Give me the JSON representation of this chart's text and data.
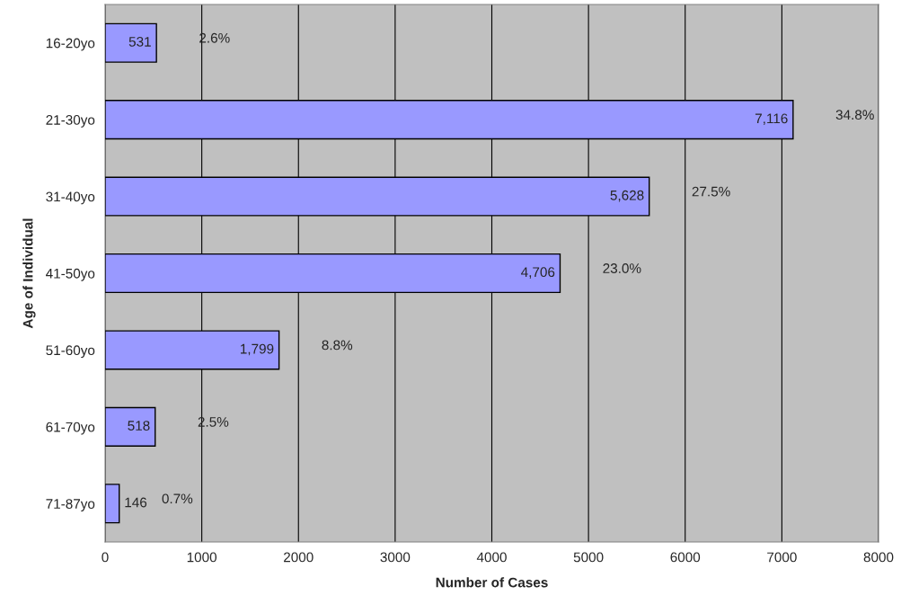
{
  "chart_data": {
    "type": "bar",
    "orientation": "horizontal",
    "xlabel": "Number of Cases",
    "ylabel": "Age of Individual",
    "categories": [
      "16-20yo",
      "21-30yo",
      "31-40yo",
      "41-50yo",
      "51-60yo",
      "61-70yo",
      "71-87yo"
    ],
    "values": [
      531,
      7116,
      5628,
      4706,
      1799,
      518,
      146
    ],
    "value_labels": [
      "531",
      "7,116",
      "5,628",
      "4,706",
      "1,799",
      "518",
      "146"
    ],
    "color": "#9999ff",
    "xlim": [
      0,
      8000
    ],
    "xticks": [
      0,
      1000,
      2000,
      3000,
      4000,
      5000,
      6000,
      7000,
      8000
    ],
    "grid": "x",
    "legend": false,
    "annotations": [
      "2.6%",
      "34.8%",
      "27.5%",
      "23.0%",
      "8.8%",
      "2.5%",
      "0.7%"
    ]
  }
}
